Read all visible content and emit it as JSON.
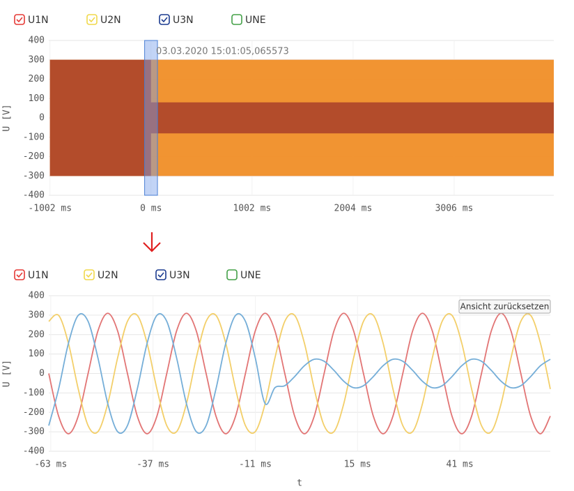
{
  "chart_data": [
    {
      "type": "range-area",
      "ylabel": "U [V]",
      "xlim": [
        -1014,
        3994
      ],
      "ylim": [
        -400,
        400
      ],
      "xticks": [
        {
          "value": -1002,
          "label": "-1002 ms"
        },
        {
          "value": 0,
          "label": "0 ms"
        },
        {
          "value": 1002,
          "label": "1002 ms"
        },
        {
          "value": 2004,
          "label": "2004 ms"
        },
        {
          "value": 3006,
          "label": "3006 ms"
        }
      ],
      "yticks": [
        400,
        300,
        200,
        100,
        0,
        -100,
        -200,
        -300,
        -400
      ],
      "grid": true,
      "selection": [
        -63.5,
        64
      ],
      "annotation": "03.03.2020 15:01:05,065573",
      "series": [
        {
          "name": "U1N",
          "color": "#e53935",
          "line_color": "#e8592c",
          "checked": true,
          "x": [
            -1002,
            3994
          ],
          "high": [
            300,
            300
          ],
          "low": [
            -300,
            -300
          ]
        },
        {
          "name": "U2N",
          "color": "#f0d84a",
          "line_color": "#f29a2e",
          "checked": true,
          "x": [
            -1002,
            3994
          ],
          "high": [
            300,
            300
          ],
          "low": [
            -300,
            -300
          ]
        },
        {
          "name": "U3N",
          "color": "#1a3a8f",
          "line_color": "#a8402a",
          "checked": true,
          "x": [
            -1002,
            0,
            0,
            3994
          ],
          "high": [
            300,
            300,
            80,
            80
          ],
          "low": [
            -300,
            -300,
            -80,
            -80
          ]
        },
        {
          "name": "UNE",
          "color": "#43a047",
          "checked": false
        }
      ]
    },
    {
      "type": "line",
      "ylabel": "U [V]",
      "xlabel": "t",
      "button": "Ansicht zurücksetzen",
      "xlim": [
        -63.5,
        64
      ],
      "ylim": [
        -400,
        400
      ],
      "xticks": [
        {
          "value": -63,
          "label": "-63 ms"
        },
        {
          "value": -37,
          "label": "-37 ms"
        },
        {
          "value": -11,
          "label": "-11 ms"
        },
        {
          "value": 15,
          "label": "15 ms"
        },
        {
          "value": 41,
          "label": "41 ms"
        }
      ],
      "yticks": [
        400,
        300,
        200,
        100,
        0,
        -100,
        -200,
        -300,
        -400
      ],
      "grid": true,
      "x": [
        -63.5,
        -61,
        -58.5,
        -56,
        -53.5,
        -51,
        -48.5,
        -46,
        -43.5,
        -41,
        -38.5,
        -36,
        -33.5,
        -31,
        -28.5,
        -26,
        -23.5,
        -21,
        -18.5,
        -16,
        -13.5,
        -11,
        -8.5,
        -6,
        -3.5,
        -1,
        1.5,
        4,
        6.5,
        9,
        11.5,
        14,
        16.5,
        19,
        21.5,
        24,
        26.5,
        29,
        31.5,
        34,
        36.5,
        39,
        41.5,
        44,
        46.5,
        49,
        51.5,
        54,
        56.5,
        59,
        61.5,
        64
      ],
      "series": [
        {
          "name": "U1N",
          "color": "#e53935",
          "line_color": "#e27575",
          "checked": true,
          "values": [
            0,
            -219,
            -310,
            -219,
            0,
            219,
            310,
            219,
            0,
            -219,
            -310,
            -219,
            0,
            219,
            310,
            219,
            0,
            -219,
            -310,
            -219,
            0,
            219,
            310,
            219,
            0,
            -219,
            -310,
            -219,
            0,
            219,
            310,
            219,
            0,
            -219,
            -310,
            -219,
            0,
            219,
            310,
            219,
            0,
            -219,
            -310,
            -219,
            0,
            219,
            310,
            219,
            0,
            -219,
            -310,
            -219
          ]
        },
        {
          "name": "U2N",
          "color": "#f0d84a",
          "line_color": "#f3cf6a",
          "checked": true,
          "values": [
            268,
            299,
            155,
            -80,
            -268,
            -299,
            -155,
            80,
            268,
            299,
            155,
            -80,
            -268,
            -299,
            -155,
            80,
            268,
            299,
            155,
            -80,
            -268,
            -299,
            -155,
            80,
            268,
            299,
            155,
            -80,
            -268,
            -299,
            -155,
            80,
            268,
            299,
            155,
            -80,
            -268,
            -299,
            -155,
            80,
            268,
            299,
            155,
            -80,
            -268,
            -299,
            -155,
            80,
            268,
            299,
            155,
            -80
          ]
        },
        {
          "name": "U3N",
          "color": "#1a3a8f",
          "line_color": "#75aed8",
          "checked": true,
          "values": [
            -268,
            -80,
            155,
            299,
            268,
            80,
            -155,
            -299,
            -268,
            -80,
            155,
            299,
            268,
            80,
            -155,
            -299,
            -268,
            -80,
            155,
            299,
            268,
            80,
            -155,
            -73,
            -63,
            -16,
            40,
            73,
            63,
            16,
            -40,
            -73,
            -63,
            -16,
            40,
            73,
            63,
            16,
            -40,
            -73,
            -63,
            -16,
            40,
            73,
            63,
            16,
            -40,
            -73,
            -63,
            -16,
            40,
            73
          ]
        },
        {
          "name": "UNE",
          "color": "#43a047",
          "checked": false
        }
      ]
    }
  ]
}
